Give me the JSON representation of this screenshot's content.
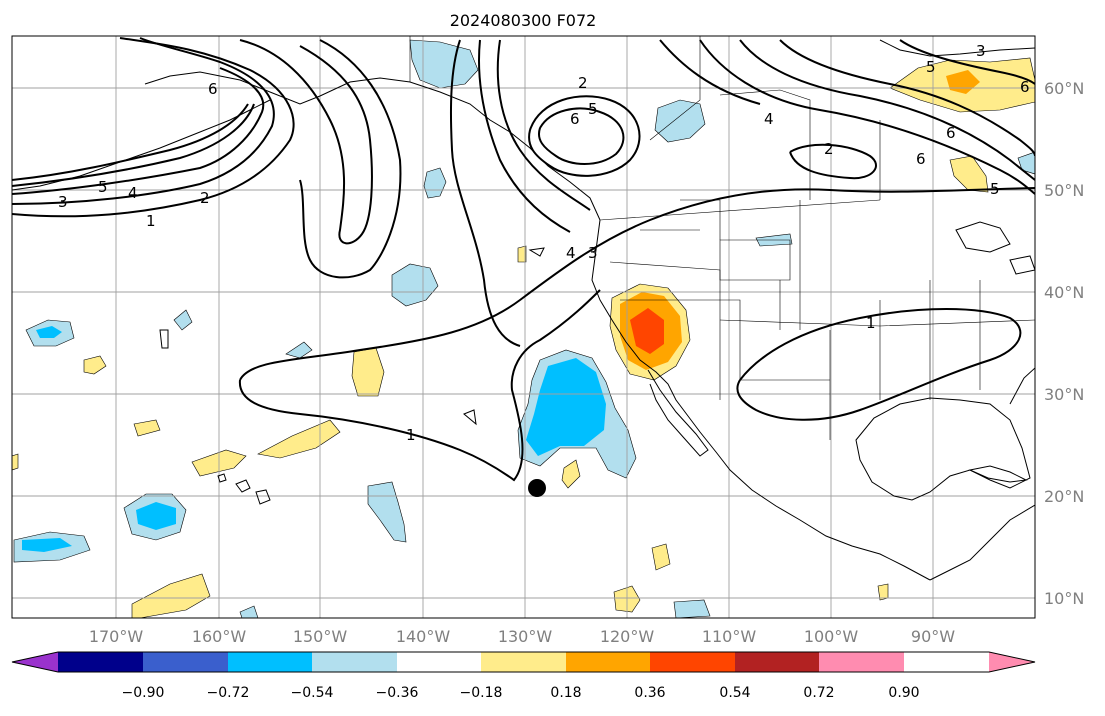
{
  "title": "2024080300 F072",
  "longitude_labels": [
    "170°W",
    "160°W",
    "150°W",
    "140°W",
    "130°W",
    "120°W",
    "110°W",
    "100°W",
    "90°W"
  ],
  "latitude_labels": [
    "60°N",
    "50°N",
    "40°N",
    "30°N",
    "20°N",
    "10°N"
  ],
  "colorbar": {
    "tick_labels": [
      "−0.90",
      "−0.72",
      "−0.54",
      "−0.36",
      "−0.18",
      "0.18",
      "0.36",
      "0.54",
      "0.72",
      "0.90"
    ],
    "colors": [
      "#9a32cd",
      "#00008b",
      "#3a5fcd",
      "#00bfff",
      "#b2dfee",
      "#ffffff",
      "#ffec8b",
      "#ffa500",
      "#ff4500",
      "#b22222",
      "#ff8cb0"
    ]
  },
  "contour_labels": [
    "1",
    "2",
    "3",
    "4",
    "5",
    "6"
  ],
  "colors": {
    "land_coast": "#000000",
    "grid": "#a0a0a0",
    "axis_label": "#808080",
    "contour": "#000000",
    "marker": "#000000"
  }
}
